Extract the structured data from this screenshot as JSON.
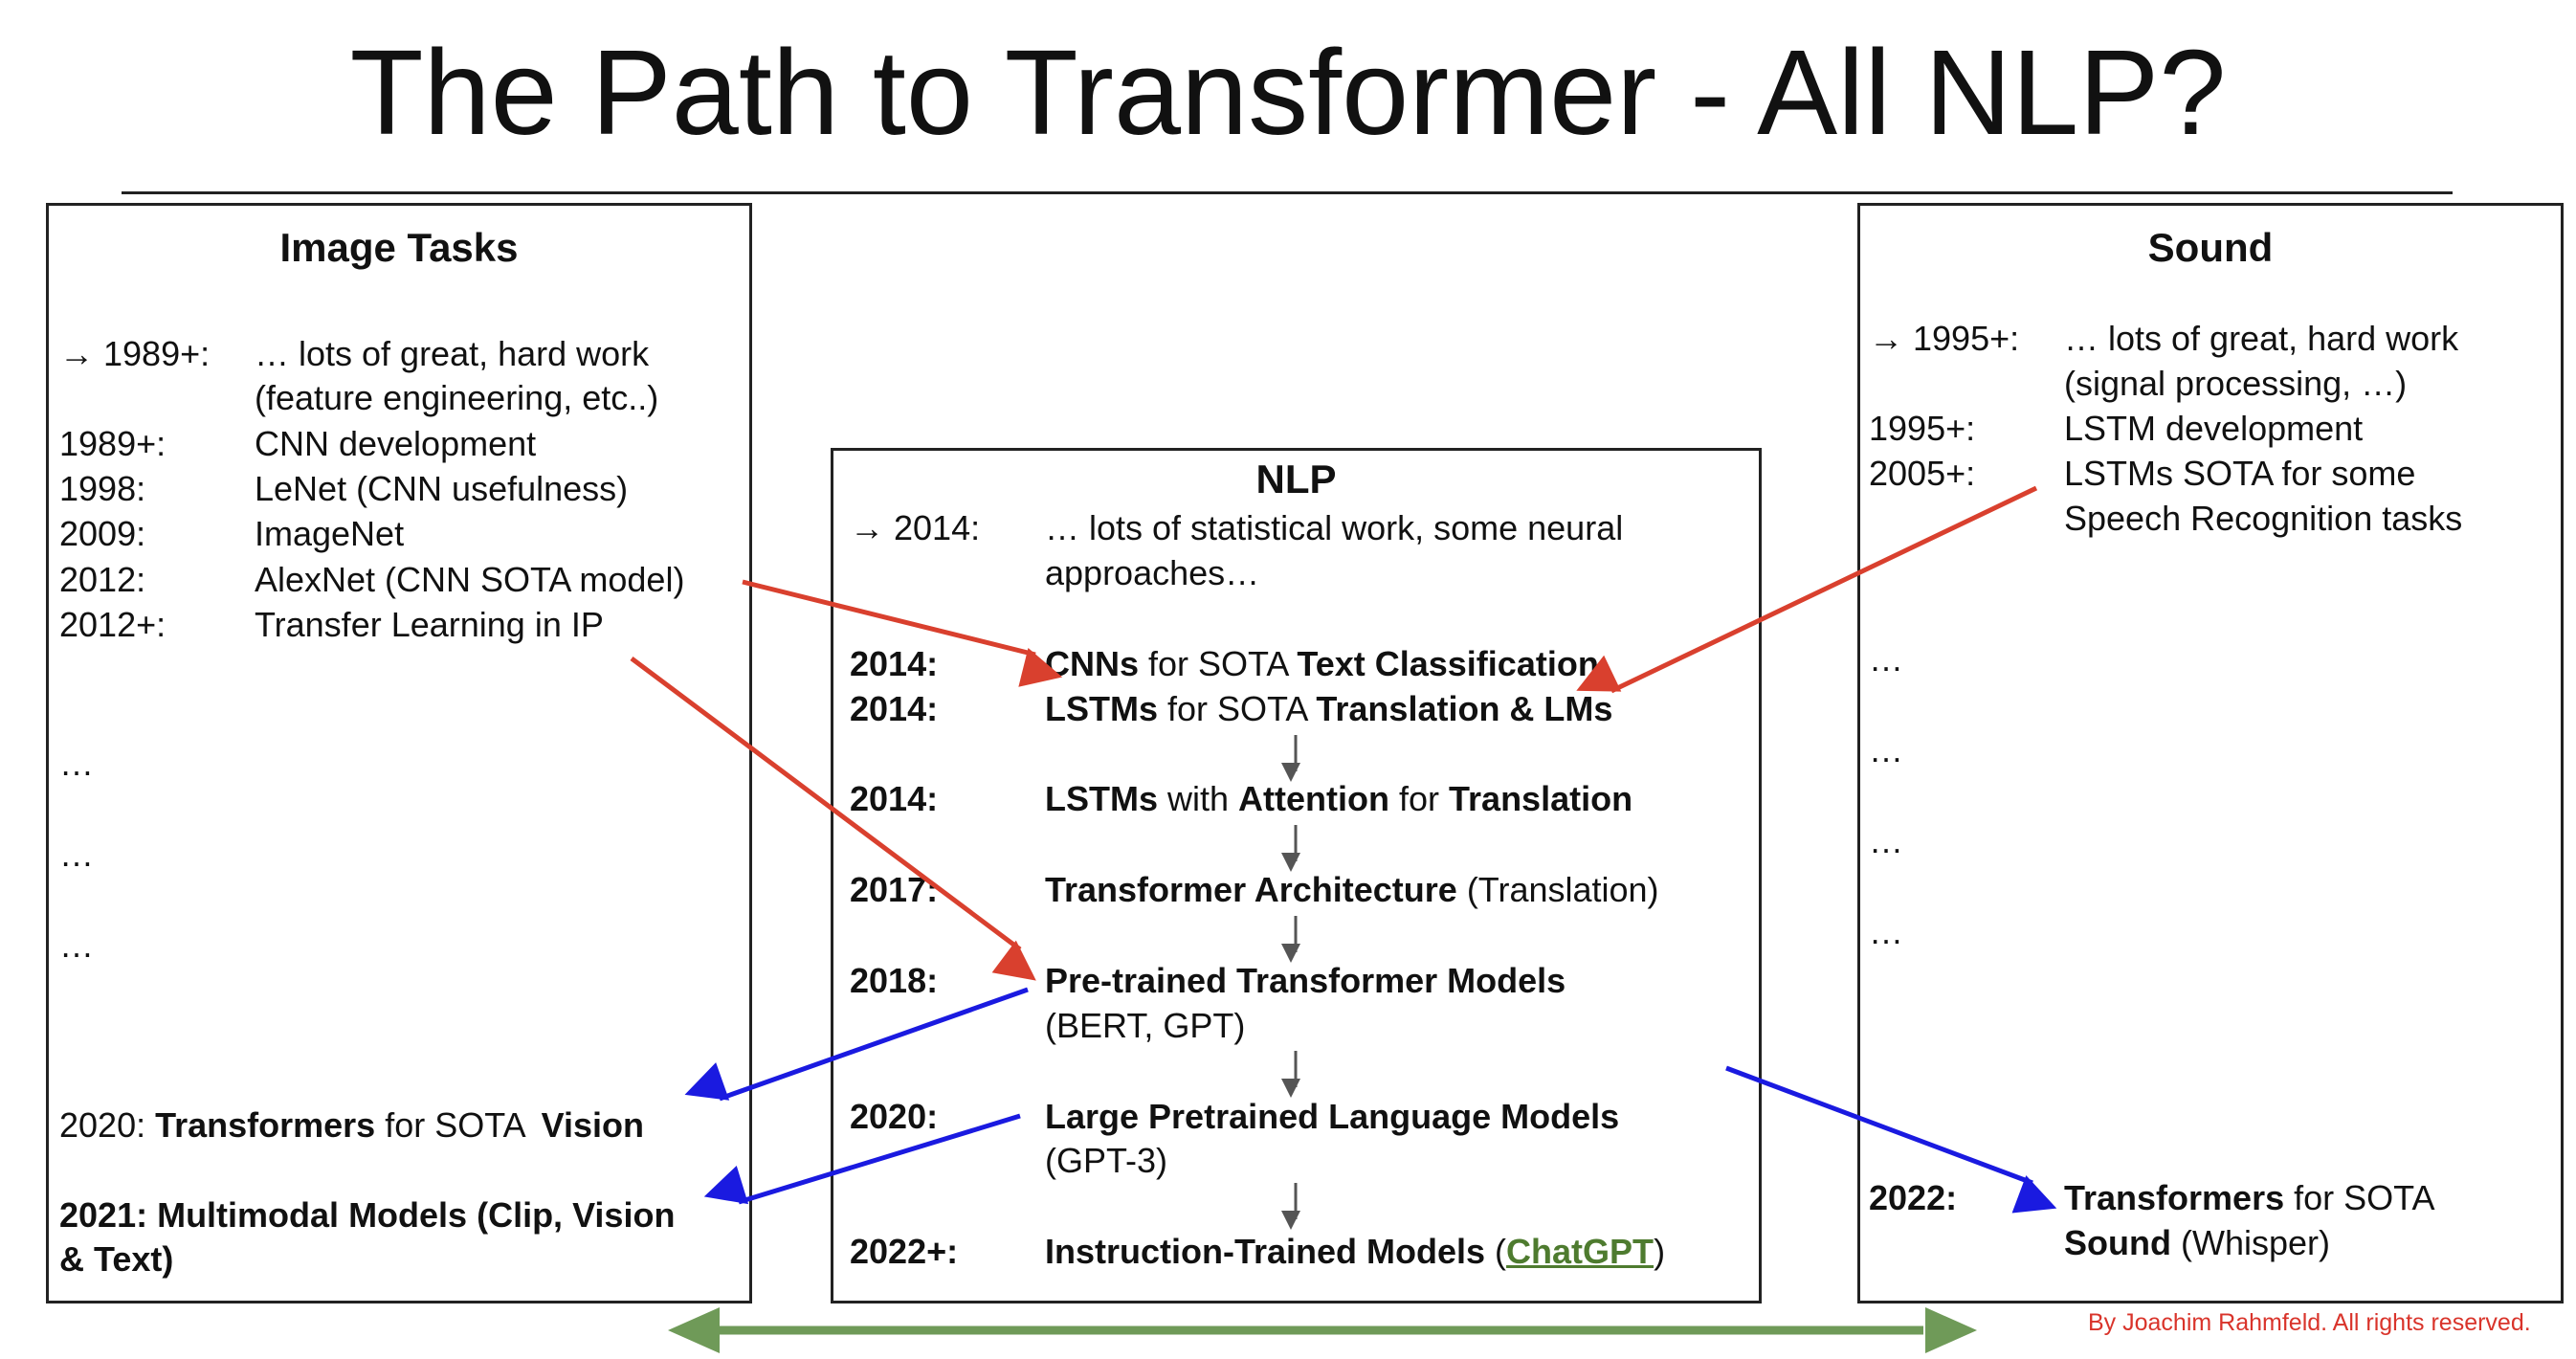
{
  "title": "The Path to Transformer - All NLP?",
  "image_panel": {
    "title": "Image Tasks",
    "rows": [
      {
        "year": "→ 1989+:",
        "text": "… lots of great, hard work",
        "cont": "(feature engineering, etc..)"
      },
      {
        "year": "1989+:",
        "text": "CNN development"
      },
      {
        "year": "1998:",
        "text": "LeNet (CNN usefulness)"
      },
      {
        "year": "2009:",
        "text": "ImageNet"
      },
      {
        "year": "2012:",
        "text": "AlexNet (CNN SOTA model)"
      },
      {
        "year": "2012+:",
        "text": "Transfer Learning in IP"
      }
    ],
    "ellipsis": [
      "…",
      "…",
      "…"
    ],
    "vision": {
      "year": "2020:",
      "bold1": "Transformers",
      "mid": "for SOTA",
      "bold2": "Vision"
    },
    "multimodal": {
      "line1": "2021: Multimodal Models (Clip, Vision",
      "line2": "& Text)"
    }
  },
  "nlp_panel": {
    "title": "NLP",
    "intro": {
      "year": "→ 2014:",
      "line1": "… lots of statistical work, some neural",
      "line2": "approaches…"
    },
    "r1": {
      "year": "2014:",
      "b1": "CNNs",
      "m1": " for SOTA ",
      "b2": "Text Classification"
    },
    "r2": {
      "year": "2014:",
      "b1": "LSTMs",
      "m1": " for SOTA ",
      "b2": "Translation & LMs"
    },
    "r3": {
      "year": "2014:",
      "b1": "LSTMs",
      "m1": " with ",
      "b2": "Attention",
      "m2": " for ",
      "b3": "Translation"
    },
    "r4": {
      "year": "2017:",
      "b1": "Transformer Architecture",
      "m1": " (Translation)"
    },
    "r5": {
      "year": "2018:",
      "b1": "Pre-trained Transformer Models",
      "line2": "(BERT, GPT)"
    },
    "r6": {
      "year": "2020:",
      "b1": "Large Pretrained Language Models",
      "line2": "(GPT-3)"
    },
    "r7": {
      "year": "2022+:",
      "b1": "Instruction-Trained Models",
      "open": " (",
      "link": "ChatGPT",
      "close": ")"
    }
  },
  "sound_panel": {
    "title": "Sound",
    "rows": [
      {
        "year": "→ 1995+:",
        "text": "… lots of great, hard work",
        "cont": "(signal processing, …)"
      },
      {
        "year": "1995+:",
        "text": "LSTM development"
      },
      {
        "year": "2005+:",
        "text": "LSTMs SOTA for some",
        "cont": "Speech Recognition tasks"
      }
    ],
    "ellipsis": [
      "…",
      "…",
      "…",
      "…"
    ],
    "final": {
      "year": "2022:",
      "b1": "Transformers",
      "m1": " for SOTA",
      "b2": "Sound",
      "m2": " (Whisper)"
    }
  },
  "credit": "By Joachim Rahmfeld. All rights reserved.",
  "colors": {
    "red_arrow": "#d9402e",
    "blue_arrow": "#1a1ae0",
    "green_arrow": "#6f9a58",
    "gray_arrow": "#555555"
  }
}
